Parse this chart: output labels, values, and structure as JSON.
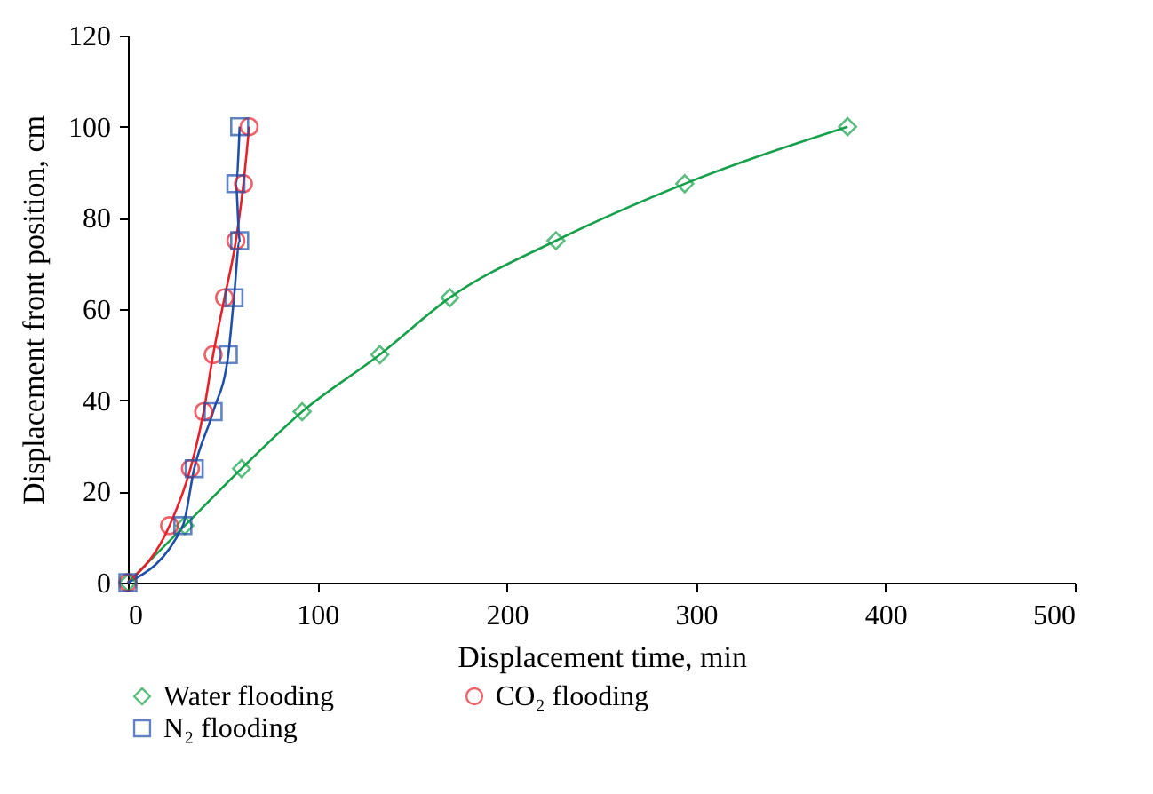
{
  "chart_data": {
    "type": "line",
    "xlabel": "Displacement time, min",
    "ylabel": "Displacement front position, cm",
    "xlim": [
      0,
      500
    ],
    "xticks": [
      0,
      100,
      200,
      300,
      400,
      500
    ],
    "ylim": [
      0,
      120
    ],
    "yticks": [
      0,
      20,
      40,
      60,
      80,
      100,
      120
    ],
    "grid": false,
    "legend": "bottom",
    "line_style": "solid",
    "series": [
      {
        "name": "Water flooding",
        "color": "#17a04b",
        "marker": "diamond",
        "x": [
          0,
          30,
          60,
          92,
          133,
          170,
          226,
          294,
          380
        ],
        "values": [
          0,
          12.5,
          25,
          37.5,
          50,
          62.5,
          75,
          87.5,
          100
        ]
      },
      {
        "name": "CO₂ flooding",
        "color": "#e8202a",
        "marker": "circle",
        "x": [
          0,
          22,
          33,
          40,
          45,
          51,
          57,
          61,
          64
        ],
        "values": [
          0,
          12.5,
          25,
          37.5,
          50,
          62.5,
          75,
          87.5,
          100
        ]
      },
      {
        "name": "N₂ flooding",
        "color": "#1f4fa8",
        "marker": "square",
        "x": [
          0,
          29,
          35,
          45,
          53,
          56,
          59,
          57,
          59
        ],
        "values": [
          0,
          12.5,
          25,
          37.5,
          50,
          62.5,
          75,
          87.5,
          100
        ]
      }
    ]
  }
}
